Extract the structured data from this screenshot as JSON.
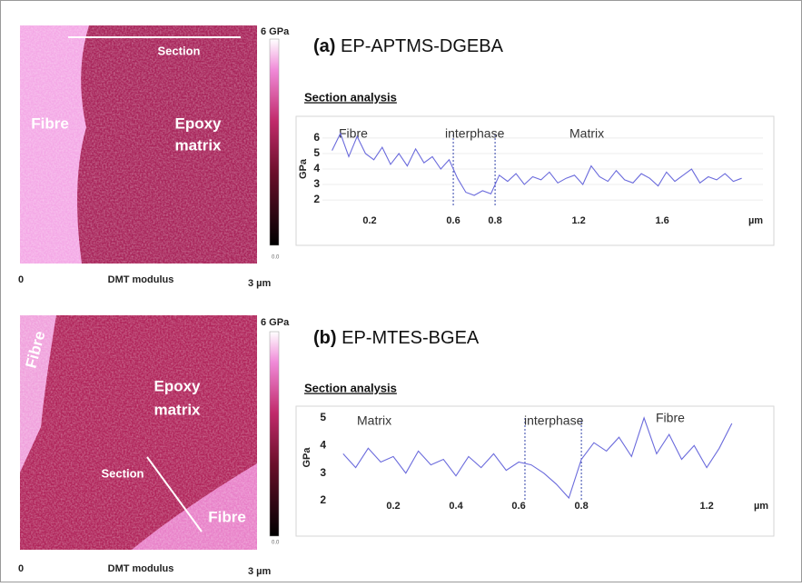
{
  "images": [
    {
      "scale_max": "6 GPa",
      "scale_min": "0.0",
      "x_start": "0",
      "caption": "DMT modulus",
      "x_end": "3 µm",
      "labels": [
        "Fibre",
        "Epoxy",
        "matrix",
        "Section"
      ]
    },
    {
      "scale_max": "6 GPa",
      "scale_min": "0.0",
      "x_start": "0",
      "caption": "DMT modulus",
      "x_end": "3 µm",
      "labels": [
        "Fibre",
        "Epoxy",
        "matrix",
        "Section",
        "Fibre"
      ]
    }
  ],
  "chart_data": [
    {
      "type": "line",
      "label": "(a)",
      "title": "EP-APTMS-DGEBA",
      "subtitle": "Section analysis",
      "y_label": "GPa",
      "x_unit": "µm",
      "annotations": [
        "Fibre",
        "interphase",
        "Matrix"
      ],
      "xlim": [
        0,
        2.06
      ],
      "ylim": [
        1.3,
        6.7
      ],
      "xticks": [
        0.2,
        0.6,
        0.8,
        1.2,
        1.6
      ],
      "yticks": [
        2,
        3,
        4,
        5,
        6
      ],
      "grid": true,
      "vlines": [
        0.6,
        0.8
      ],
      "x": [
        0.02,
        0.06,
        0.1,
        0.14,
        0.18,
        0.22,
        0.26,
        0.3,
        0.34,
        0.38,
        0.42,
        0.46,
        0.5,
        0.54,
        0.58,
        0.62,
        0.66,
        0.7,
        0.74,
        0.78,
        0.82,
        0.86,
        0.9,
        0.94,
        0.98,
        1.02,
        1.06,
        1.1,
        1.14,
        1.18,
        1.22,
        1.26,
        1.3,
        1.34,
        1.38,
        1.42,
        1.46,
        1.5,
        1.54,
        1.58,
        1.62,
        1.66,
        1.7,
        1.74,
        1.78,
        1.82,
        1.86,
        1.9,
        1.94,
        1.98
      ],
      "series": [
        {
          "color": "#6b6bdc",
          "values": [
            5.2,
            6.3,
            4.8,
            6.1,
            5.0,
            4.6,
            5.4,
            4.3,
            5.0,
            4.2,
            5.3,
            4.4,
            4.8,
            4.0,
            4.6,
            3.4,
            2.5,
            2.3,
            2.6,
            2.4,
            3.6,
            3.2,
            3.7,
            3.0,
            3.5,
            3.3,
            3.8,
            3.1,
            3.4,
            3.6,
            3.0,
            4.2,
            3.5,
            3.2,
            3.9,
            3.3,
            3.1,
            3.7,
            3.4,
            2.9,
            3.8,
            3.2,
            3.6,
            4.0,
            3.1,
            3.5,
            3.3,
            3.7,
            3.2,
            3.4
          ]
        }
      ]
    },
    {
      "type": "line",
      "label": "(b)",
      "title": "EP-MTES-BGEA",
      "subtitle": "Section analysis",
      "y_label": "GPa",
      "x_unit": "µm",
      "annotations": [
        "Matrix",
        "interphase",
        "Fibre"
      ],
      "xlim": [
        0,
        1.414
      ],
      "ylim": [
        1.87,
        5.26
      ],
      "xticks": [
        0.2,
        0.4,
        0.6,
        0.8,
        1.2
      ],
      "yticks": [
        2,
        3,
        4,
        5
      ],
      "grid": false,
      "vlines": [
        0.62,
        0.8
      ],
      "x": [
        0.04,
        0.08,
        0.12,
        0.16,
        0.2,
        0.24,
        0.28,
        0.32,
        0.36,
        0.4,
        0.44,
        0.48,
        0.52,
        0.56,
        0.6,
        0.64,
        0.68,
        0.72,
        0.76,
        0.8,
        0.84,
        0.88,
        0.92,
        0.96,
        1.0,
        1.04,
        1.08,
        1.12,
        1.16,
        1.2,
        1.24,
        1.28
      ],
      "series": [
        {
          "color": "#6b6bdc",
          "values": [
            3.7,
            3.2,
            3.9,
            3.4,
            3.6,
            3.0,
            3.8,
            3.3,
            3.5,
            2.9,
            3.6,
            3.2,
            3.7,
            3.1,
            3.4,
            3.3,
            3.0,
            2.6,
            2.1,
            3.5,
            4.1,
            3.8,
            4.3,
            3.6,
            5.0,
            3.7,
            4.4,
            3.5,
            4.0,
            3.2,
            3.9,
            4.8
          ]
        }
      ]
    }
  ]
}
